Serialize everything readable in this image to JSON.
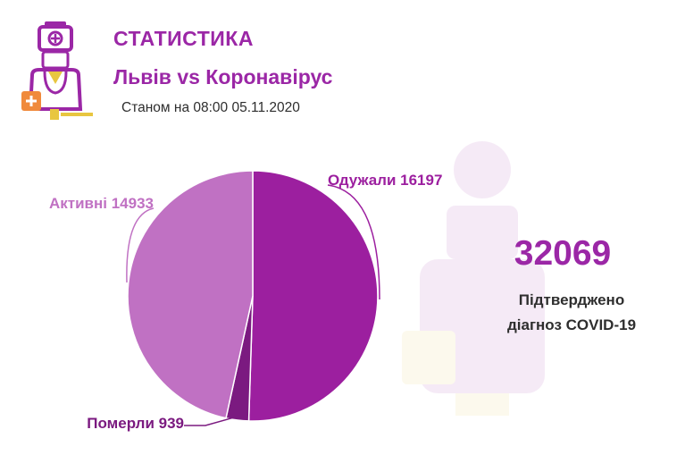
{
  "header": {
    "title": "СТАТИСТИКА",
    "subtitle": "Львів vs Коронавірус",
    "as_of": "Станом на 08:00 05.11.2020",
    "logo_icon": "doctor-icon"
  },
  "summary": {
    "total": "32069",
    "label_line1": "Підтверджено",
    "label_line2": "діагноз COVID-19"
  },
  "colors": {
    "brand": "#9b27a6",
    "recovered": "#9c1f9f",
    "active": "#c071c3",
    "deaths": "#7b1a80",
    "text": "#2e2e2e"
  },
  "chart_data": {
    "type": "pie",
    "title": "",
    "slices": [
      {
        "label": "Одужали",
        "value": 16197,
        "text": "Одужали 16197",
        "color": "#9c1f9f"
      },
      {
        "label": "Померли",
        "value": 939,
        "text": "Померли 939",
        "color": "#7b1a80"
      },
      {
        "label": "Активні",
        "value": 14933,
        "text": "Активні 14933",
        "color": "#c071c3"
      }
    ],
    "legend": "none"
  }
}
